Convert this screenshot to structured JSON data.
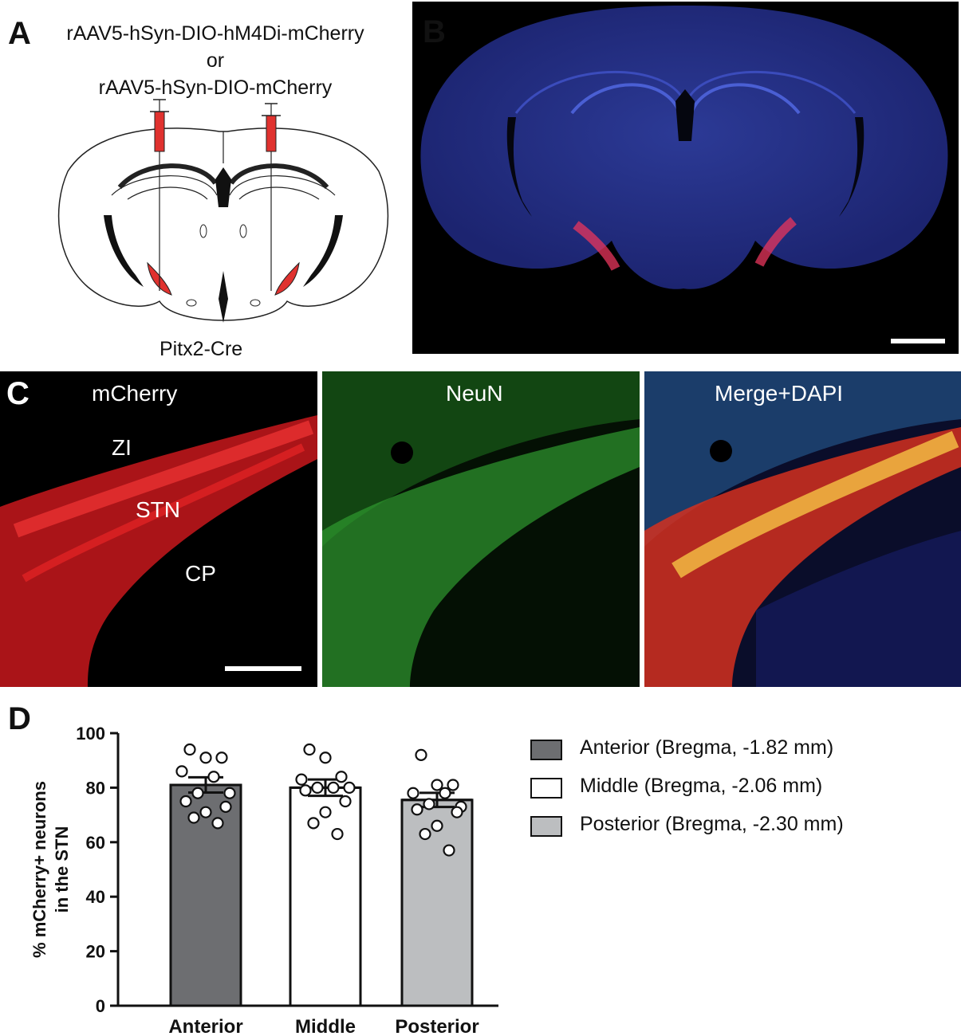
{
  "panel_a": {
    "letter": "A",
    "virus_line1": "rAAV5-hSyn-DIO-hM4Di-mCherry",
    "virus_or": "or",
    "virus_line2": "rAAV5-hSyn-DIO-mCherry",
    "mouse_line": "Pitx2-Cre"
  },
  "panel_b": {
    "letter": "B"
  },
  "panel_c": {
    "letter": "C",
    "channels": [
      "mCherry",
      "NeuN",
      "Merge+DAPI"
    ],
    "regions": [
      "ZI",
      "STN",
      "CP"
    ]
  },
  "panel_d": {
    "letter": "D",
    "legend": [
      {
        "label": "Anterior (Bregma, -1.82 mm)",
        "color": "#6d6e71"
      },
      {
        "label": "Middle (Bregma, -2.06 mm)",
        "color": "#ffffff"
      },
      {
        "label": "Posterior (Bregma, -2.30 mm)",
        "color": "#bcbec0"
      }
    ]
  },
  "chart_data": {
    "type": "bar",
    "ylabel_line1": "% mCherry+ neurons",
    "ylabel_line2": "in the STN",
    "ylim": [
      0,
      100
    ],
    "yticks": [
      0,
      20,
      40,
      60,
      80,
      100
    ],
    "categories": [
      "Anterior",
      "Middle",
      "Posterior"
    ],
    "values": [
      81,
      80,
      75.5
    ],
    "sem": [
      2.8,
      3.0,
      2.6
    ],
    "colors": [
      "#6d6e71",
      "#ffffff",
      "#bcbec0"
    ],
    "points": [
      [
        94,
        91,
        91,
        86,
        84,
        78,
        78,
        75,
        73,
        71,
        69,
        67
      ],
      [
        94,
        91,
        84,
        83,
        80,
        80,
        80,
        79,
        75,
        71,
        67,
        63
      ],
      [
        92,
        81,
        81,
        78,
        78,
        74,
        73,
        72,
        71,
        66,
        63,
        57
      ]
    ]
  }
}
